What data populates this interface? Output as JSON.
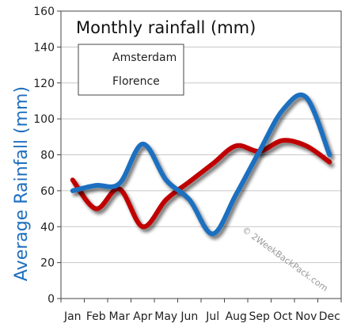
{
  "chart_data": {
    "type": "line",
    "title": "Monthly rainfall (mm)",
    "xlabel": "",
    "ylabel": "Average Rainfall (mm)",
    "categories": [
      "Jan",
      "Feb",
      "Mar",
      "Apr",
      "May",
      "Jun",
      "Jul",
      "Aug",
      "Sep",
      "Oct",
      "Nov",
      "Dec"
    ],
    "ylim": [
      0,
      160
    ],
    "yticks": [
      0,
      20,
      40,
      60,
      80,
      100,
      120,
      140,
      160
    ],
    "grid": true,
    "legend_position": "top-left",
    "series": [
      {
        "name": "Amsterdam",
        "color": "#c00000",
        "values": [
          66,
          50,
          61,
          40,
          55,
          65,
          75,
          85,
          82,
          88,
          85,
          76
        ]
      },
      {
        "name": "Florence",
        "color": "#1f6fbf",
        "values": [
          60,
          63,
          64,
          86,
          66,
          55,
          36,
          58,
          82,
          105,
          112,
          80
        ]
      }
    ],
    "watermark": "© 2WeekBackPack.com"
  },
  "colors": {
    "ylabel": "#1f6fbf",
    "grid": "#c8c8c8",
    "background": "#ffffff"
  }
}
